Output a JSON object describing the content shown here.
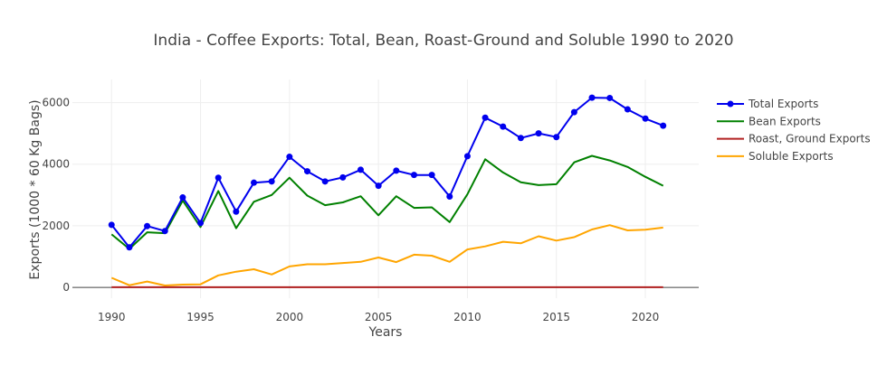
{
  "chart_data": {
    "type": "line",
    "title": "India - Coffee Exports: Total, Bean, Roast-Ground and Soluble  1990 to 2020",
    "xlabel": "Years",
    "ylabel": "Exports (1000 * 60 Kg Bags)",
    "x": [
      1990,
      1991,
      1992,
      1993,
      1994,
      1995,
      1996,
      1997,
      1998,
      1999,
      2000,
      2001,
      2002,
      2003,
      2004,
      2005,
      2006,
      2007,
      2008,
      2009,
      2010,
      2011,
      2012,
      2013,
      2014,
      2015,
      2016,
      2017,
      2018,
      2019,
      2020,
      2021
    ],
    "xlim": [
      1987.8,
      2023
    ],
    "ylim": [
      -350,
      6750
    ],
    "x_ticks": [
      1990,
      1995,
      2000,
      2005,
      2010,
      2015,
      2020
    ],
    "y_ticks": [
      0,
      2000,
      4000,
      6000
    ],
    "grid": true,
    "legend_position": "right",
    "series": [
      {
        "name": "Total Exports",
        "color": "#0000ee",
        "markers": true,
        "values": [
          2030,
          1300,
          1990,
          1830,
          2920,
          2090,
          3560,
          2460,
          3400,
          3440,
          4240,
          3770,
          3440,
          3570,
          3820,
          3300,
          3790,
          3650,
          3650,
          2950,
          4260,
          5510,
          5220,
          4850,
          5000,
          4880,
          5690,
          6160,
          6150,
          5780,
          5480,
          5250
        ]
      },
      {
        "name": "Bean Exports",
        "color": "#008000",
        "markers": false,
        "values": [
          1720,
          1250,
          1790,
          1760,
          2820,
          1960,
          3130,
          1920,
          2780,
          3000,
          3560,
          2980,
          2670,
          2760,
          2960,
          2340,
          2960,
          2580,
          2600,
          2120,
          3020,
          4160,
          3730,
          3410,
          3320,
          3350,
          4060,
          4270,
          4120,
          3910,
          3590,
          3300
        ]
      },
      {
        "name": "Roast, Ground Exports",
        "color": "#b22222",
        "markers": false,
        "values": [
          5,
          5,
          5,
          5,
          5,
          5,
          5,
          5,
          5,
          5,
          5,
          5,
          5,
          5,
          5,
          5,
          5,
          5,
          5,
          5,
          5,
          5,
          5,
          5,
          5,
          5,
          5,
          5,
          5,
          5,
          5,
          5
        ]
      },
      {
        "name": "Soluble Exports",
        "color": "#ffa500",
        "markers": false,
        "values": [
          310,
          70,
          190,
          60,
          90,
          100,
          390,
          510,
          590,
          420,
          680,
          750,
          750,
          790,
          830,
          970,
          820,
          1060,
          1030,
          830,
          1230,
          1330,
          1480,
          1430,
          1660,
          1520,
          1630,
          1880,
          2020,
          1850,
          1870,
          1940
        ]
      }
    ]
  }
}
